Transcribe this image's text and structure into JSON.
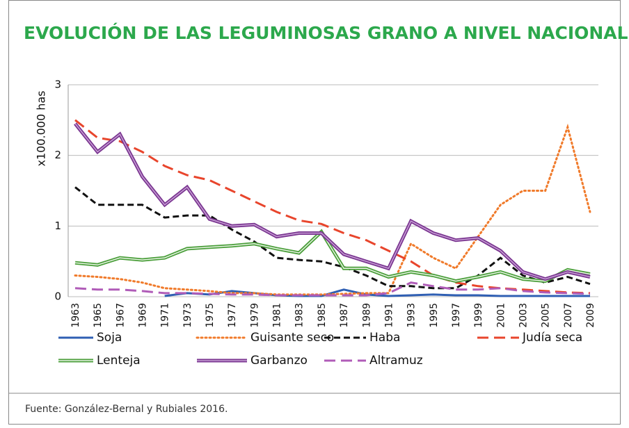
{
  "chart_data": {
    "type": "line",
    "title": "EVOLUCIÓN DE LAS LEGUMINOSAS GRANO A NIVEL NACIONAL",
    "y_label": "x100.000 has",
    "source": "Fuente: González-Bernal y Rubiales 2016.",
    "categories": [
      "1963",
      "1965",
      "1967",
      "1969",
      "1971",
      "1973",
      "1975",
      "1977",
      "1979",
      "1981",
      "1983",
      "1985",
      "1987",
      "1989",
      "1991",
      "1993",
      "1995",
      "1997",
      "1999",
      "2001",
      "2003",
      "2005",
      "2007",
      "2009"
    ],
    "ylim": [
      0,
      3
    ],
    "yticks": [
      0,
      1,
      2,
      3
    ],
    "grid": true,
    "series": [
      {
        "name": "Soja",
        "color": "#2f5fb3",
        "dash": "solid",
        "values": [
          null,
          null,
          null,
          null,
          0.01,
          0.05,
          0.03,
          0.08,
          0.05,
          0.02,
          0.01,
          0.01,
          0.1,
          0.03,
          0.01,
          0.02,
          0.03,
          0.02,
          0.02,
          0.01,
          0.01,
          0.01,
          0.01,
          0.01
        ]
      },
      {
        "name": "Guisante seco",
        "color": "#f07a2a",
        "dash": "dotted",
        "values": [
          0.3,
          0.28,
          0.25,
          0.2,
          0.12,
          0.1,
          0.08,
          0.05,
          0.05,
          0.03,
          0.03,
          0.03,
          0.04,
          0.05,
          0.05,
          0.75,
          0.55,
          0.4,
          0.85,
          1.3,
          1.5,
          1.5,
          2.4,
          1.2
        ]
      },
      {
        "name": "Haba",
        "color": "#111111",
        "dash": "dashed",
        "values": [
          1.55,
          1.3,
          1.3,
          1.3,
          1.12,
          1.15,
          1.15,
          0.95,
          0.78,
          0.55,
          0.52,
          0.5,
          0.42,
          0.3,
          0.15,
          0.15,
          0.12,
          0.12,
          0.3,
          0.55,
          0.3,
          0.2,
          0.28,
          0.18
        ]
      },
      {
        "name": "Judía seca",
        "color": "#e8452c",
        "dash": "longdash",
        "values": [
          2.5,
          2.25,
          2.2,
          2.05,
          1.85,
          1.72,
          1.65,
          1.5,
          1.35,
          1.2,
          1.08,
          1.03,
          0.9,
          0.8,
          0.65,
          0.5,
          0.3,
          0.2,
          0.15,
          0.12,
          0.1,
          0.08,
          0.06,
          0.05
        ]
      },
      {
        "name": "Lenteja",
        "color": "#4a9e3a",
        "dash": "double",
        "values": [
          0.48,
          0.45,
          0.55,
          0.52,
          0.55,
          0.68,
          0.7,
          0.72,
          0.75,
          0.68,
          0.62,
          0.92,
          0.4,
          0.4,
          0.28,
          0.35,
          0.3,
          0.22,
          0.28,
          0.35,
          0.25,
          0.22,
          0.38,
          0.32
        ]
      },
      {
        "name": "Garbanzo",
        "color": "#7a3590",
        "dash": "double",
        "values": [
          2.45,
          2.05,
          2.3,
          1.7,
          1.3,
          1.55,
          1.1,
          1.0,
          1.02,
          0.85,
          0.9,
          0.9,
          0.6,
          0.5,
          0.4,
          1.07,
          0.9,
          0.8,
          0.83,
          0.65,
          0.35,
          0.25,
          0.35,
          0.28
        ]
      },
      {
        "name": "Altramuz",
        "color": "#b05cb8",
        "dash": "longdash",
        "values": [
          0.12,
          0.1,
          0.1,
          0.08,
          0.05,
          0.05,
          0.04,
          0.03,
          0.03,
          0.02,
          0.02,
          0.02,
          0.02,
          0.02,
          0.05,
          0.2,
          0.15,
          0.1,
          0.1,
          0.12,
          0.08,
          0.06,
          0.05,
          0.04
        ]
      }
    ]
  }
}
